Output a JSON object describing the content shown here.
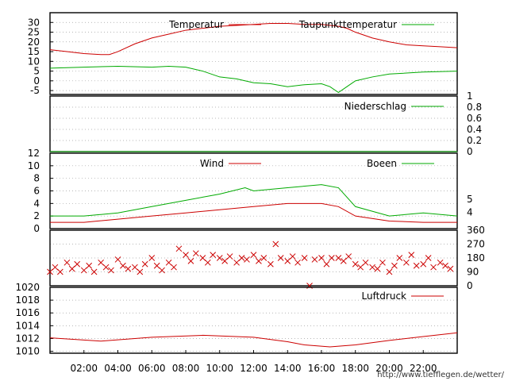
{
  "credit": "http://www.tiefflegen.de/wetter/",
  "colors": {
    "red": "#cc0000",
    "green": "#00aa00",
    "grid": "#a0a0a0",
    "frame": "#000000"
  },
  "x_ticks": [
    "02:00",
    "04:00",
    "06:00",
    "08:00",
    "10:00",
    "12:00",
    "14:00",
    "16:00",
    "18:00",
    "20:00",
    "22:00"
  ],
  "chart_data": [
    {
      "id": "temp",
      "type": "line",
      "y_ticks_left": [
        30,
        25,
        20,
        15,
        10,
        5,
        0,
        -5
      ],
      "ylim": [
        -7,
        35
      ],
      "grid": true,
      "legend": "top-right",
      "series": [
        {
          "name": "Temperatur",
          "color": "#cc0000",
          "points": [
            [
              0,
              16
            ],
            [
              1,
              15
            ],
            [
              2,
              14
            ],
            [
              3,
              13.5
            ],
            [
              3.5,
              13.5
            ],
            [
              4,
              15
            ],
            [
              5,
              19
            ],
            [
              6,
              22
            ],
            [
              7,
              24
            ],
            [
              8,
              26
            ],
            [
              9,
              27
            ],
            [
              10,
              28
            ],
            [
              11,
              28.5
            ],
            [
              12,
              29
            ],
            [
              13,
              29.5
            ],
            [
              14,
              29.5
            ],
            [
              15,
              29
            ],
            [
              16,
              29
            ],
            [
              17,
              28
            ],
            [
              17.5,
              27
            ],
            [
              18,
              25
            ],
            [
              19,
              22
            ],
            [
              20,
              20
            ],
            [
              21,
              18.5
            ],
            [
              22,
              18
            ],
            [
              23,
              17.5
            ],
            [
              24,
              17
            ]
          ]
        },
        {
          "name": "Taupunkttemperatur",
          "color": "#00aa00",
          "points": [
            [
              0,
              6.5
            ],
            [
              2,
              7
            ],
            [
              4,
              7.5
            ],
            [
              6,
              7
            ],
            [
              7,
              7.5
            ],
            [
              8,
              7
            ],
            [
              9,
              5
            ],
            [
              10,
              2
            ],
            [
              11,
              1
            ],
            [
              12,
              -1
            ],
            [
              13,
              -1.5
            ],
            [
              14,
              -3
            ],
            [
              15,
              -2
            ],
            [
              16,
              -1.5
            ],
            [
              16.5,
              -3
            ],
            [
              17,
              -6
            ],
            [
              17.5,
              -3
            ],
            [
              18,
              0
            ],
            [
              19,
              2
            ],
            [
              20,
              3.5
            ],
            [
              22,
              4.5
            ],
            [
              24,
              5
            ]
          ]
        }
      ]
    },
    {
      "id": "precip",
      "type": "line",
      "y_ticks_right": [
        "1",
        "0.8",
        "0.6",
        "0.4",
        "0.2",
        "0"
      ],
      "ylim": [
        0,
        1
      ],
      "series": [
        {
          "name": "Niederschlag",
          "color": "#00aa00",
          "points": [
            [
              0,
              0
            ],
            [
              24,
              0
            ]
          ]
        }
      ]
    },
    {
      "id": "wind",
      "type": "line",
      "y_ticks_left": [
        12,
        10,
        8,
        6,
        4,
        2,
        0
      ],
      "y_ticks_right": [
        "5",
        "4"
      ],
      "ylim": [
        0,
        12
      ],
      "series": [
        {
          "name": "Wind",
          "color": "#cc0000",
          "points": [
            [
              0,
              1
            ],
            [
              2,
              1
            ],
            [
              4,
              1.5
            ],
            [
              6,
              2
            ],
            [
              8,
              2.5
            ],
            [
              10,
              3
            ],
            [
              12,
              3.5
            ],
            [
              14,
              4
            ],
            [
              16,
              4
            ],
            [
              17,
              3.5
            ],
            [
              18,
              2
            ],
            [
              20,
              1.2
            ],
            [
              22,
              1
            ],
            [
              24,
              1
            ]
          ]
        },
        {
          "name": "Boeen",
          "color": "#00aa00",
          "points": [
            [
              0,
              2
            ],
            [
              2,
              2
            ],
            [
              4,
              2.5
            ],
            [
              6,
              3.5
            ],
            [
              8,
              4.5
            ],
            [
              10,
              5.5
            ],
            [
              11.5,
              6.5
            ],
            [
              12,
              6
            ],
            [
              14,
              6.5
            ],
            [
              16,
              7
            ],
            [
              17,
              6.5
            ],
            [
              18,
              3.5
            ],
            [
              20,
              2
            ],
            [
              22,
              2.5
            ],
            [
              24,
              2
            ]
          ]
        }
      ]
    },
    {
      "id": "direction",
      "type": "scatter",
      "y_ticks_right": [
        360,
        270,
        180,
        90,
        0
      ],
      "ylim": [
        0,
        360
      ],
      "marker": "x",
      "series": [
        {
          "name": "",
          "color": "#cc0000",
          "points": [
            [
              0,
              90
            ],
            [
              0.3,
              120
            ],
            [
              0.6,
              90
            ],
            [
              1,
              150
            ],
            [
              1.3,
              110
            ],
            [
              1.6,
              140
            ],
            [
              2,
              100
            ],
            [
              2.3,
              130
            ],
            [
              2.6,
              90
            ],
            [
              3,
              150
            ],
            [
              3.3,
              120
            ],
            [
              3.6,
              100
            ],
            [
              4,
              170
            ],
            [
              4.3,
              130
            ],
            [
              4.6,
              110
            ],
            [
              5,
              120
            ],
            [
              5.3,
              90
            ],
            [
              5.6,
              140
            ],
            [
              6,
              180
            ],
            [
              6.3,
              130
            ],
            [
              6.6,
              100
            ],
            [
              7,
              150
            ],
            [
              7.3,
              120
            ],
            [
              7.6,
              240
            ],
            [
              8,
              200
            ],
            [
              8.3,
              160
            ],
            [
              8.6,
              210
            ],
            [
              9,
              180
            ],
            [
              9.3,
              150
            ],
            [
              9.6,
              200
            ],
            [
              10,
              180
            ],
            [
              10.3,
              160
            ],
            [
              10.6,
              190
            ],
            [
              11,
              150
            ],
            [
              11.3,
              180
            ],
            [
              11.6,
              170
            ],
            [
              12,
              200
            ],
            [
              12.3,
              160
            ],
            [
              12.6,
              180
            ],
            [
              13,
              140
            ],
            [
              13.3,
              270
            ],
            [
              13.6,
              180
            ],
            [
              14,
              160
            ],
            [
              14.3,
              190
            ],
            [
              14.6,
              150
            ],
            [
              15,
              180
            ],
            [
              15.3,
              0
            ],
            [
              15.6,
              170
            ],
            [
              16,
              180
            ],
            [
              16.3,
              140
            ],
            [
              16.6,
              180
            ],
            [
              17,
              180
            ],
            [
              17.3,
              160
            ],
            [
              17.6,
              190
            ],
            [
              18,
              140
            ],
            [
              18.3,
              120
            ],
            [
              18.6,
              150
            ],
            [
              19,
              120
            ],
            [
              19.3,
              110
            ],
            [
              19.6,
              150
            ],
            [
              20,
              90
            ],
            [
              20.3,
              130
            ],
            [
              20.6,
              180
            ],
            [
              21,
              150
            ],
            [
              21.3,
              200
            ],
            [
              21.6,
              130
            ],
            [
              22,
              140
            ],
            [
              22.3,
              180
            ],
            [
              22.6,
              120
            ],
            [
              23,
              150
            ],
            [
              23.3,
              130
            ],
            [
              23.6,
              110
            ]
          ]
        }
      ]
    },
    {
      "id": "pressure",
      "type": "line",
      "y_ticks_left": [
        1020,
        1018,
        1016,
        1014,
        1012,
        1010
      ],
      "ylim": [
        1009.7,
        1020
      ],
      "series": [
        {
          "name": "Luftdruck",
          "color": "#cc0000",
          "points": [
            [
              0,
              1012.1
            ],
            [
              3,
              1011.6
            ],
            [
              6,
              1012.2
            ],
            [
              9,
              1012.5
            ],
            [
              12,
              1012.2
            ],
            [
              14,
              1011.5
            ],
            [
              15,
              1011
            ],
            [
              16.5,
              1010.7
            ],
            [
              18,
              1011
            ],
            [
              20,
              1011.7
            ],
            [
              22,
              1012.3
            ],
            [
              24,
              1012.9
            ]
          ]
        }
      ]
    }
  ]
}
